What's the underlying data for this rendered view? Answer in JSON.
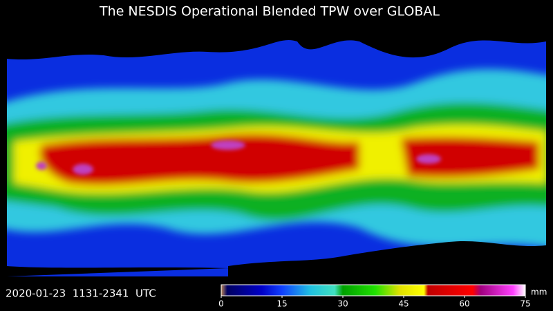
{
  "title": "The NESDIS Operational Blended TPW over GLOBAL",
  "timestamp": "2020-01-23  1131-2341  UTC",
  "colorbar": {
    "unit": "mm",
    "range": [
      0,
      75
    ],
    "ticks": [
      0,
      15,
      30,
      45,
      60,
      75
    ],
    "stops": [
      {
        "value": 0,
        "color": "#c08a5a"
      },
      {
        "value": 1.5,
        "color": "#000060"
      },
      {
        "value": 10,
        "color": "#0000c8"
      },
      {
        "value": 15,
        "color": "#1040ff"
      },
      {
        "value": 22,
        "color": "#20c0e0"
      },
      {
        "value": 28,
        "color": "#40e0c0"
      },
      {
        "value": 30,
        "color": "#00a000"
      },
      {
        "value": 38,
        "color": "#20e000"
      },
      {
        "value": 44,
        "color": "#e0e000"
      },
      {
        "value": 50,
        "color": "#ffff00"
      },
      {
        "value": 51,
        "color": "#c00000"
      },
      {
        "value": 62,
        "color": "#ff0000"
      },
      {
        "value": 64,
        "color": "#a00080"
      },
      {
        "value": 72,
        "color": "#ff40ff"
      },
      {
        "value": 75,
        "color": "#ffffff"
      }
    ]
  }
}
